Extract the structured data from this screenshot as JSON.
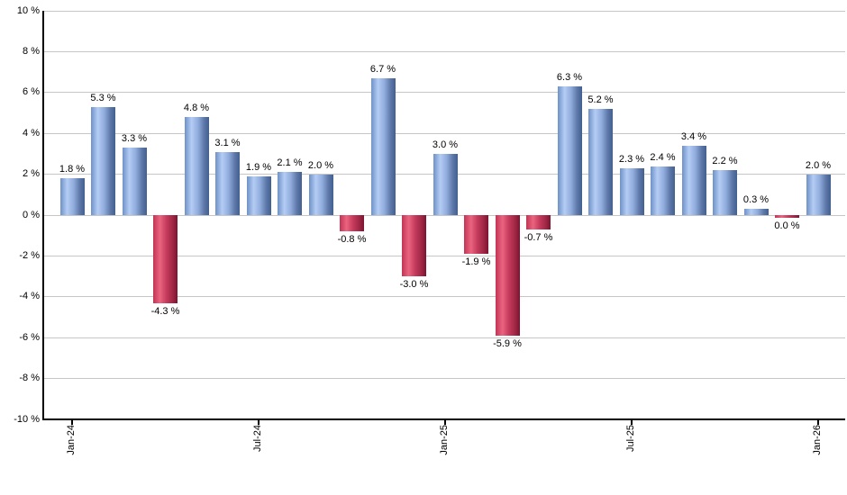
{
  "chart": {
    "background_color": "#ffffff",
    "axis_color": "#000000",
    "grid_color": "#c6c6c6",
    "text_color": "#000000",
    "positive_bar_colors": [
      "#6e91c7",
      "#b4cdf4",
      "#8fabdc",
      "#42608f"
    ],
    "negative_bar_colors": [
      "#c23454",
      "#ea647f",
      "#c53a5c",
      "#7c1430"
    ]
  },
  "chart_data": {
    "type": "bar",
    "title": "",
    "xlabel": "",
    "ylabel": "",
    "ylim": [
      -10,
      10
    ],
    "y_tick_step": 2,
    "grid": true,
    "legend": "none",
    "y_tick_labels": [
      "10 %",
      "8 %",
      "6 %",
      "4 %",
      "2 %",
      "0 %",
      "-2 %",
      "-4 %",
      "-6 %",
      "-8 %",
      "-10 %"
    ],
    "x_tick_labels": [
      {
        "index": 0,
        "label": "Jan-24"
      },
      {
        "index": 6,
        "label": "Jul-24"
      },
      {
        "index": 12,
        "label": "Jan-25"
      },
      {
        "index": 18,
        "label": "Jul-25"
      },
      {
        "index": 24,
        "label": "Jan-26"
      }
    ],
    "bars": [
      {
        "value": 1.8,
        "label": "1.8 %",
        "color": "positive"
      },
      {
        "value": 5.3,
        "label": "5.3 %",
        "color": "positive"
      },
      {
        "value": 3.3,
        "label": "3.3 %",
        "color": "positive"
      },
      {
        "value": -4.3,
        "label": "-4.3 %",
        "color": "negative"
      },
      {
        "value": 4.8,
        "label": "4.8 %",
        "color": "positive"
      },
      {
        "value": 3.1,
        "label": "3.1 %",
        "color": "positive"
      },
      {
        "value": 1.9,
        "label": "1.9 %",
        "color": "positive"
      },
      {
        "value": 2.1,
        "label": "2.1 %",
        "color": "positive"
      },
      {
        "value": 2.0,
        "label": "2.0 %",
        "color": "positive"
      },
      {
        "value": -0.8,
        "label": "-0.8 %",
        "color": "negative"
      },
      {
        "value": 6.7,
        "label": "6.7 %",
        "color": "positive"
      },
      {
        "value": -3.0,
        "label": "-3.0 %",
        "color": "negative"
      },
      {
        "value": 3.0,
        "label": "3.0 %",
        "color": "positive"
      },
      {
        "value": -1.9,
        "label": "-1.9 %",
        "color": "negative"
      },
      {
        "value": -5.9,
        "label": "-5.9 %",
        "color": "negative"
      },
      {
        "value": -0.7,
        "label": "-0.7 %",
        "color": "negative"
      },
      {
        "value": 6.3,
        "label": "6.3 %",
        "color": "positive"
      },
      {
        "value": 5.2,
        "label": "5.2 %",
        "color": "positive"
      },
      {
        "value": 2.3,
        "label": "2.3 %",
        "color": "positive"
      },
      {
        "value": 2.4,
        "label": "2.4 %",
        "color": "positive"
      },
      {
        "value": 3.4,
        "label": "3.4 %",
        "color": "positive"
      },
      {
        "value": 2.2,
        "label": "2.2 %",
        "color": "positive"
      },
      {
        "value": 0.3,
        "label": "0.3 %",
        "color": "positive"
      },
      {
        "value": 0.0,
        "label": "0.0 %",
        "color": "negative"
      },
      {
        "value": 2.0,
        "label": "2.0 %",
        "color": "positive"
      }
    ]
  }
}
